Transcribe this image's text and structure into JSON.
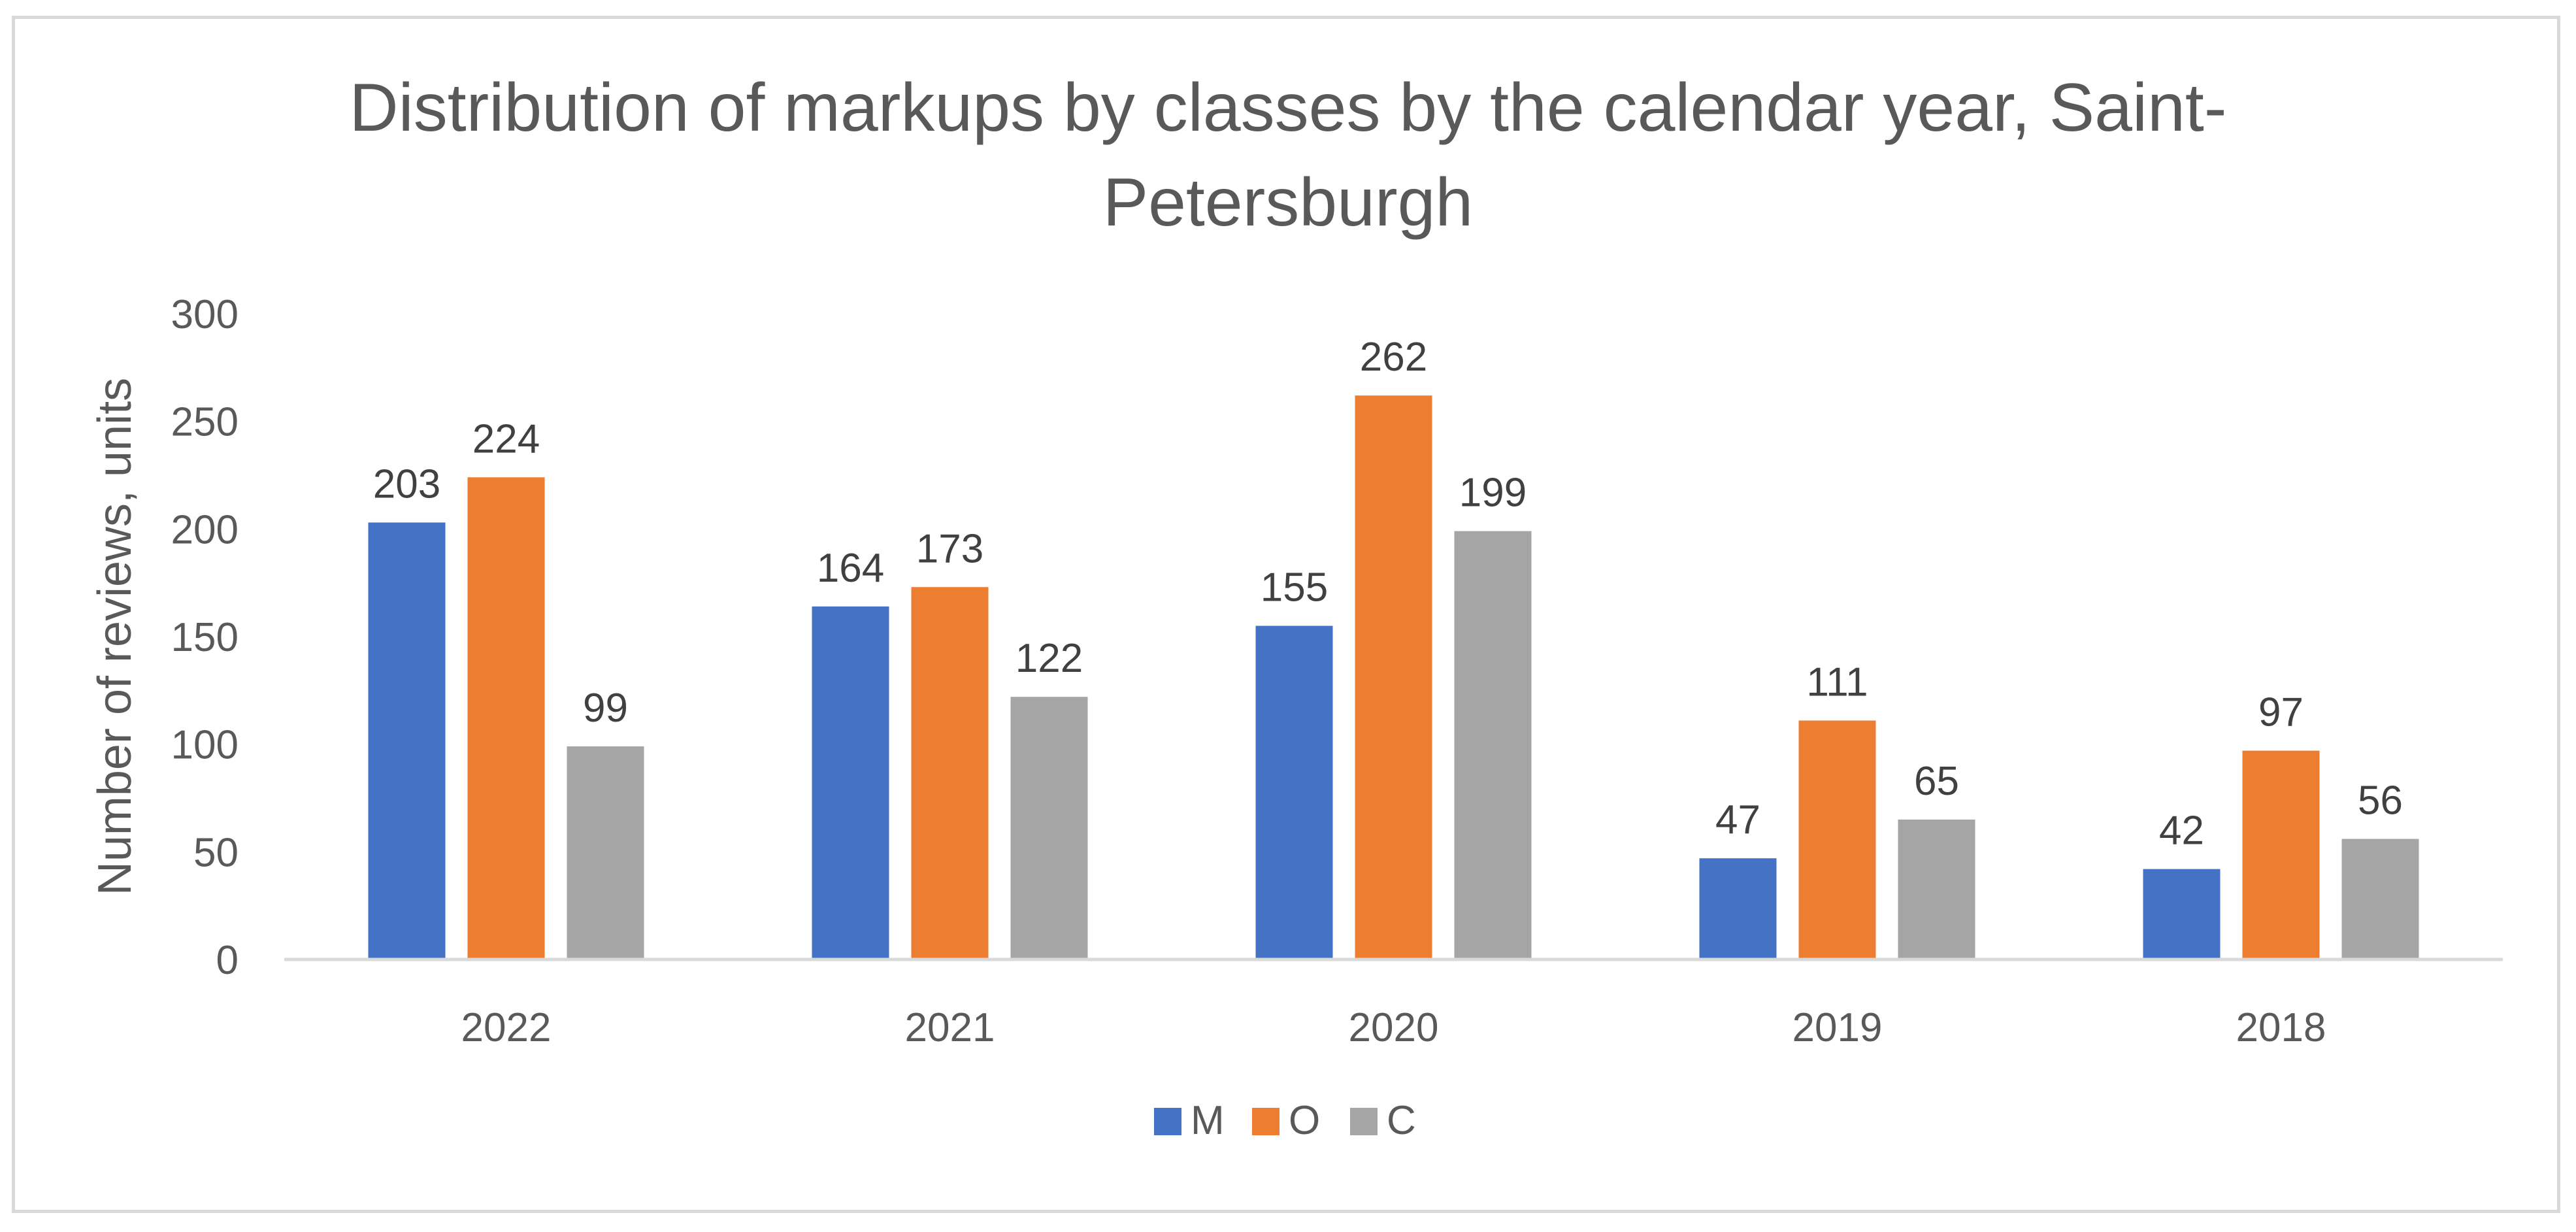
{
  "chart_data": {
    "type": "bar",
    "title_lines": [
      "Distribution of markups by classes by the calendar year, Saint-",
      "Petersburgh"
    ],
    "xlabel": "",
    "ylabel": "Number of reviews, units",
    "ylim": [
      0,
      300
    ],
    "yticks": [
      "0",
      "50",
      "100",
      "150",
      "200",
      "250",
      "300"
    ],
    "grid": false,
    "legend_position": "bottom",
    "categories": [
      "2022",
      "2021",
      "2020",
      "2019",
      "2018"
    ],
    "series": [
      {
        "name": "M",
        "color": "#4472c4",
        "values": [
          203,
          164,
          155,
          47,
          42
        ]
      },
      {
        "name": "O",
        "color": "#ed7d31",
        "values": [
          224,
          173,
          262,
          111,
          97
        ]
      },
      {
        "name": "C",
        "color": "#a5a5a5",
        "values": [
          99,
          122,
          199,
          65,
          56
        ]
      }
    ],
    "data_labels": true
  }
}
